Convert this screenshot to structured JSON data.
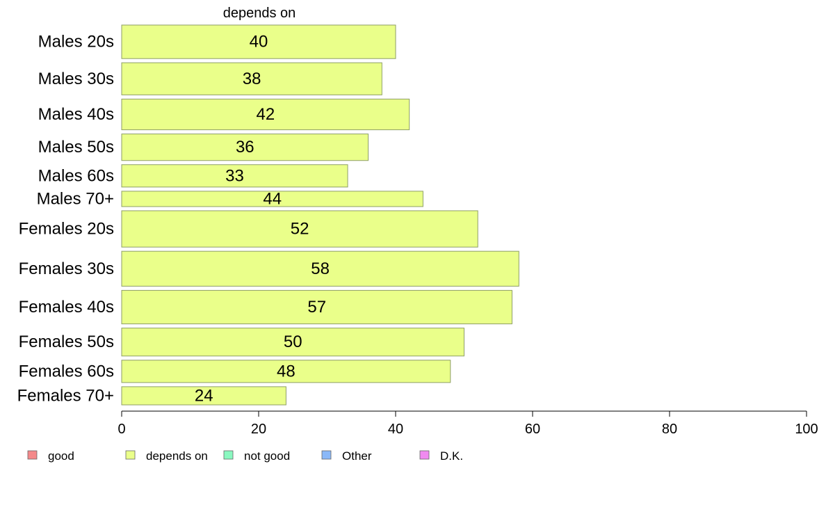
{
  "chart_data": {
    "type": "bar",
    "orientation": "horizontal",
    "title": "depends on",
    "categories": [
      "Males 20s",
      "Males 30s",
      "Males 40s",
      "Males 50s",
      "Males 60s",
      "Males 70+",
      "Females 20s",
      "Females 30s",
      "Females 40s",
      "Females 50s",
      "Females 60s",
      "Females 70+"
    ],
    "series": [
      {
        "name": "depends on",
        "values": [
          40,
          38,
          42,
          36,
          33,
          44,
          52,
          58,
          57,
          50,
          48,
          24
        ]
      }
    ],
    "category_weights": [
      48,
      46,
      44,
      38,
      32,
      22,
      52,
      50,
      48,
      40,
      32,
      26
    ],
    "xlim": [
      0,
      100
    ],
    "xticks": [
      0,
      20,
      40,
      60,
      80,
      100
    ],
    "grid": false,
    "legend_position": "bottom",
    "legend": [
      {
        "label": "good",
        "color": "#F4898A"
      },
      {
        "label": "depends on",
        "color": "#EAFF8A"
      },
      {
        "label": "not good",
        "color": "#8AF8C0"
      },
      {
        "label": "Other",
        "color": "#8AB8F8"
      },
      {
        "label": "D.K.",
        "color": "#F08AF0"
      }
    ],
    "bar_color": "#EAFF8A",
    "bar_stroke": "#8E9E66"
  }
}
